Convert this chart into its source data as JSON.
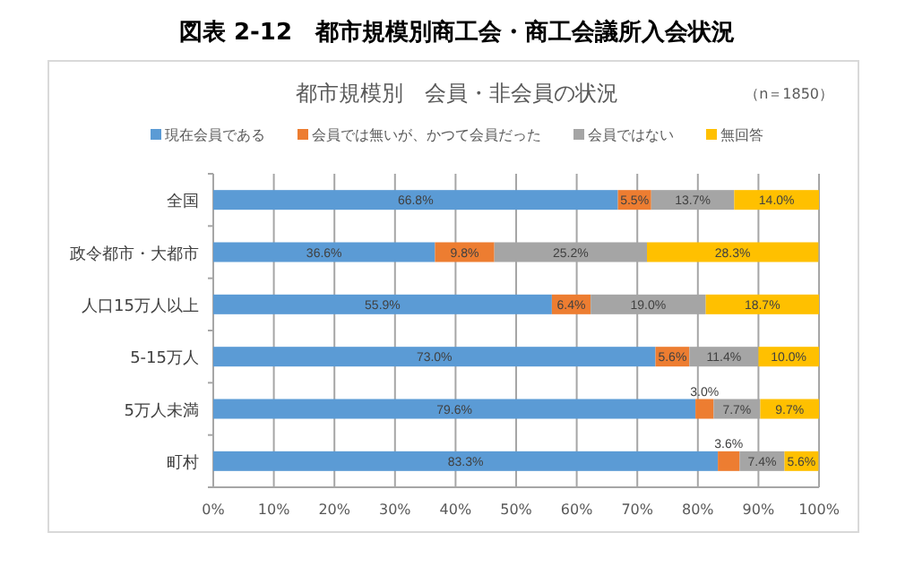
{
  "chart_data": {
    "type": "bar",
    "orientation": "horizontal",
    "stacked": true,
    "title": "図表 2-12　都市規模別商工会・商工会議所入会状況",
    "subtitle": "都市規模別　会員・非会員の状況",
    "annotations": [
      "（n＝1850）"
    ],
    "categories": [
      "全国",
      "政令都市・大都市",
      "人口15万人以上",
      "5-15万人",
      "5万人未満",
      "町村"
    ],
    "series": [
      {
        "name": "現在会員である",
        "color": "#5b9bd5",
        "values": [
          66.8,
          36.6,
          55.9,
          73.0,
          79.6,
          83.3
        ],
        "value_labels": [
          "66.8%",
          "36.6%",
          "55.9%",
          "73.0%",
          "79.6%",
          "83.3%"
        ]
      },
      {
        "name": "会員では無いが、かつて会員だった",
        "color": "#ed7d31",
        "values": [
          5.5,
          9.8,
          6.4,
          5.6,
          3.0,
          3.6
        ],
        "value_labels": [
          "5.5%",
          "9.8%",
          "6.4%",
          "5.6%",
          "3.0%",
          "3.6%"
        ]
      },
      {
        "name": "会員ではない",
        "color": "#a5a5a5",
        "values": [
          13.7,
          25.2,
          19.0,
          11.4,
          7.7,
          7.4
        ],
        "value_labels": [
          "13.7%",
          "25.2%",
          "19.0%",
          "11.4%",
          "7.7%",
          "7.4%"
        ]
      },
      {
        "name": "無回答",
        "color": "#ffc000",
        "values": [
          14.0,
          28.3,
          18.7,
          10.0,
          9.7,
          5.6
        ],
        "value_labels": [
          "14.0%",
          "28.3%",
          "18.7%",
          "10.0%",
          "9.7%",
          "5.6%"
        ]
      }
    ],
    "xlim": [
      0,
      100
    ],
    "xticks": [
      {
        "value": 0,
        "label": "0%"
      },
      {
        "value": 10,
        "label": "10%"
      },
      {
        "value": 20,
        "label": "20%"
      },
      {
        "value": 30,
        "label": "30%"
      },
      {
        "value": 40,
        "label": "40%"
      },
      {
        "value": 50,
        "label": "50%"
      },
      {
        "value": 60,
        "label": "60%"
      },
      {
        "value": 70,
        "label": "70%"
      },
      {
        "value": 80,
        "label": "80%"
      },
      {
        "value": 90,
        "label": "90%"
      },
      {
        "value": 100,
        "label": "100%"
      }
    ],
    "grid": "x",
    "legend": "top"
  }
}
